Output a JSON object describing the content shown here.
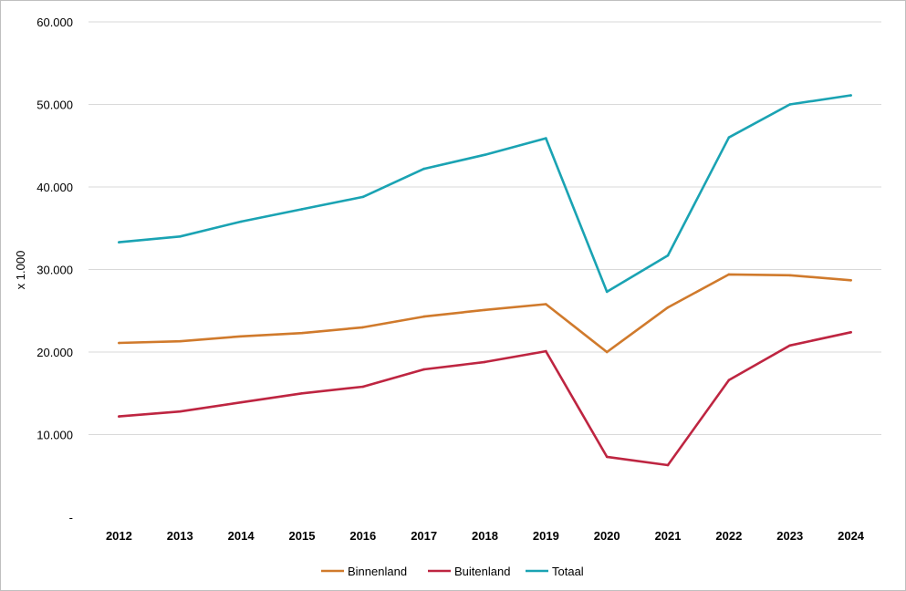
{
  "chart_data": {
    "type": "line",
    "title": "",
    "xlabel": "",
    "ylabel": "x 1.000",
    "ylim": [
      0,
      60000
    ],
    "yticks": [
      0,
      10000,
      20000,
      30000,
      40000,
      50000,
      60000
    ],
    "ytick_labels": [
      "-",
      "10.000",
      "20.000",
      "30.000",
      "40.000",
      "50.000",
      "60.000"
    ],
    "grid": "horizontal",
    "legend_position": "bottom",
    "categories": [
      "2012",
      "2013",
      "2014",
      "2015",
      "2016",
      "2017",
      "2018",
      "2019",
      "2020",
      "2021",
      "2022",
      "2023",
      "2024"
    ],
    "series": [
      {
        "name": "Binnenland",
        "color": "#d07a2c",
        "values": [
          21100,
          21300,
          21900,
          22300,
          23000,
          24300,
          25100,
          25800,
          20000,
          25400,
          29400,
          29300,
          28700
        ]
      },
      {
        "name": "Buitenland",
        "color": "#be2541",
        "values": [
          12200,
          12800,
          13900,
          15000,
          15800,
          17900,
          18800,
          20100,
          7300,
          6300,
          16600,
          20800,
          22400
        ]
      },
      {
        "name": "Totaal",
        "color": "#1aa3b3",
        "values": [
          33300,
          34000,
          35800,
          37300,
          38800,
          42200,
          43900,
          45900,
          27300,
          31700,
          46000,
          50000,
          51100
        ]
      }
    ]
  }
}
